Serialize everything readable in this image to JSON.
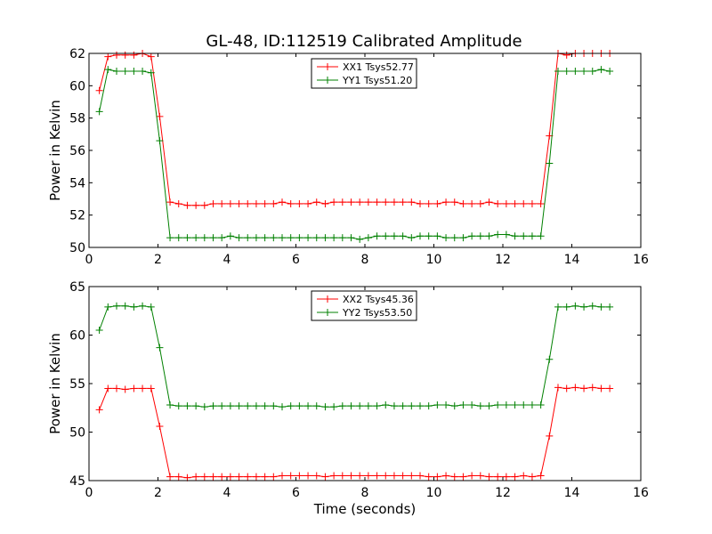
{
  "figure": {
    "title": "GL-48, ID:112519 Calibrated Amplitude"
  },
  "colors": {
    "xx": "#ff0000",
    "yy": "#008000",
    "frame": "#000000",
    "background": "#ffffff"
  },
  "chart_data": [
    {
      "type": "line",
      "title": "GL-48, ID:112519 Calibrated Amplitude",
      "xlabel": "",
      "ylabel": "Power in Kelvin",
      "xlim": [
        0,
        16
      ],
      "ylim": [
        50,
        62
      ],
      "xticks": [
        0,
        2,
        4,
        6,
        8,
        10,
        12,
        14,
        16
      ],
      "yticks": [
        50,
        52,
        54,
        56,
        58,
        60,
        62
      ],
      "grid": false,
      "legend_position": "top-center",
      "x": [
        0.3,
        0.55,
        0.8,
        1.05,
        1.3,
        1.55,
        1.8,
        2.05,
        2.35,
        2.6,
        2.85,
        3.1,
        3.35,
        3.6,
        3.85,
        4.1,
        4.35,
        4.6,
        4.85,
        5.1,
        5.35,
        5.6,
        5.85,
        6.1,
        6.35,
        6.6,
        6.85,
        7.1,
        7.35,
        7.6,
        7.85,
        8.1,
        8.35,
        8.6,
        8.85,
        9.1,
        9.35,
        9.6,
        9.85,
        10.1,
        10.35,
        10.6,
        10.85,
        11.1,
        11.35,
        11.6,
        11.85,
        12.1,
        12.35,
        12.6,
        12.85,
        13.1,
        13.35,
        13.6,
        13.85,
        14.1,
        14.35,
        14.6,
        14.85,
        15.1
      ],
      "series": [
        {
          "name": "XX1 Tsys52.77",
          "color": "#ff0000",
          "values": [
            59.7,
            61.8,
            61.9,
            61.9,
            61.9,
            62.0,
            61.8,
            58.1,
            52.8,
            52.7,
            52.6,
            52.6,
            52.6,
            52.7,
            52.7,
            52.7,
            52.7,
            52.7,
            52.7,
            52.7,
            52.7,
            52.8,
            52.7,
            52.7,
            52.7,
            52.8,
            52.7,
            52.8,
            52.8,
            52.8,
            52.8,
            52.8,
            52.8,
            52.8,
            52.8,
            52.8,
            52.8,
            52.7,
            52.7,
            52.7,
            52.8,
            52.8,
            52.7,
            52.7,
            52.7,
            52.8,
            52.7,
            52.7,
            52.7,
            52.7,
            52.7,
            52.7,
            56.9,
            62.0,
            61.9,
            62.0,
            62.0,
            62.0,
            62.0,
            62.0
          ]
        },
        {
          "name": "YY1 Tsys51.20",
          "color": "#008000",
          "values": [
            58.4,
            61.0,
            60.9,
            60.9,
            60.9,
            60.9,
            60.8,
            56.6,
            50.6,
            50.6,
            50.6,
            50.6,
            50.6,
            50.6,
            50.6,
            50.7,
            50.6,
            50.6,
            50.6,
            50.6,
            50.6,
            50.6,
            50.6,
            50.6,
            50.6,
            50.6,
            50.6,
            50.6,
            50.6,
            50.6,
            50.5,
            50.6,
            50.7,
            50.7,
            50.7,
            50.7,
            50.6,
            50.7,
            50.7,
            50.7,
            50.6,
            50.6,
            50.6,
            50.7,
            50.7,
            50.7,
            50.8,
            50.8,
            50.7,
            50.7,
            50.7,
            50.7,
            55.2,
            60.9,
            60.9,
            60.9,
            60.9,
            60.9,
            61.0,
            60.9
          ]
        }
      ]
    },
    {
      "type": "line",
      "title": "",
      "xlabel": "Time (seconds)",
      "ylabel": "Power in Kelvin",
      "xlim": [
        0,
        16
      ],
      "ylim": [
        45,
        65
      ],
      "xticks": [
        0,
        2,
        4,
        6,
        8,
        10,
        12,
        14,
        16
      ],
      "yticks": [
        45,
        50,
        55,
        60,
        65
      ],
      "grid": false,
      "legend_position": "top-center",
      "x": [
        0.3,
        0.55,
        0.8,
        1.05,
        1.3,
        1.55,
        1.8,
        2.05,
        2.35,
        2.6,
        2.85,
        3.1,
        3.35,
        3.6,
        3.85,
        4.1,
        4.35,
        4.6,
        4.85,
        5.1,
        5.35,
        5.6,
        5.85,
        6.1,
        6.35,
        6.6,
        6.85,
        7.1,
        7.35,
        7.6,
        7.85,
        8.1,
        8.35,
        8.6,
        8.85,
        9.1,
        9.35,
        9.6,
        9.85,
        10.1,
        10.35,
        10.6,
        10.85,
        11.1,
        11.35,
        11.6,
        11.85,
        12.1,
        12.35,
        12.6,
        12.85,
        13.1,
        13.35,
        13.6,
        13.85,
        14.1,
        14.35,
        14.6,
        14.85,
        15.1
      ],
      "series": [
        {
          "name": "XX2 Tsys45.36",
          "color": "#ff0000",
          "values": [
            52.3,
            54.5,
            54.5,
            54.4,
            54.5,
            54.5,
            54.5,
            50.6,
            45.4,
            45.4,
            45.3,
            45.4,
            45.4,
            45.4,
            45.4,
            45.4,
            45.4,
            45.4,
            45.4,
            45.4,
            45.4,
            45.5,
            45.5,
            45.5,
            45.5,
            45.5,
            45.4,
            45.5,
            45.5,
            45.5,
            45.5,
            45.5,
            45.5,
            45.5,
            45.5,
            45.5,
            45.5,
            45.5,
            45.4,
            45.4,
            45.5,
            45.4,
            45.4,
            45.5,
            45.5,
            45.4,
            45.4,
            45.4,
            45.4,
            45.5,
            45.4,
            45.5,
            49.6,
            54.6,
            54.5,
            54.6,
            54.5,
            54.6,
            54.5,
            54.5
          ]
        },
        {
          "name": "YY2 Tsys53.50",
          "color": "#008000",
          "values": [
            60.5,
            62.9,
            63.0,
            63.0,
            62.9,
            63.0,
            62.9,
            58.7,
            52.8,
            52.7,
            52.7,
            52.7,
            52.6,
            52.7,
            52.7,
            52.7,
            52.7,
            52.7,
            52.7,
            52.7,
            52.7,
            52.6,
            52.7,
            52.7,
            52.7,
            52.7,
            52.6,
            52.6,
            52.7,
            52.7,
            52.7,
            52.7,
            52.7,
            52.8,
            52.7,
            52.7,
            52.7,
            52.7,
            52.7,
            52.8,
            52.8,
            52.7,
            52.8,
            52.8,
            52.7,
            52.7,
            52.8,
            52.8,
            52.8,
            52.8,
            52.8,
            52.8,
            57.5,
            62.9,
            62.9,
            63.0,
            62.9,
            63.0,
            62.9,
            62.9
          ]
        }
      ]
    }
  ]
}
